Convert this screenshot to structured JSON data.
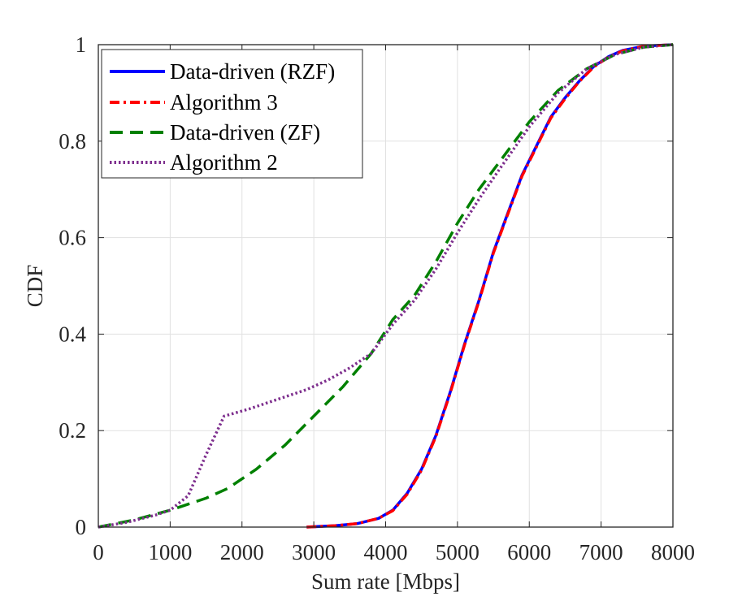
{
  "chart_data": {
    "type": "line",
    "title": "",
    "xlabel": "Sum rate [Mbps]",
    "ylabel": "CDF",
    "xlim": [
      0,
      8000
    ],
    "ylim": [
      0,
      1
    ],
    "grid": true,
    "legend_position": "top-left",
    "x_ticks": [
      "0",
      "1000",
      "2000",
      "3000",
      "4000",
      "5000",
      "6000",
      "7000",
      "8000"
    ],
    "y_ticks": [
      "0",
      "0.2",
      "0.4",
      "0.6",
      "0.8",
      "1"
    ],
    "x_tick_values": [
      0,
      1000,
      2000,
      3000,
      4000,
      5000,
      6000,
      7000,
      8000
    ],
    "y_tick_values": [
      0,
      0.2,
      0.4,
      0.6,
      0.8,
      1
    ],
    "series": [
      {
        "name": "Data-driven (RZF)",
        "color": "#0000ff",
        "dash": "solid",
        "points": [
          [
            2900,
            0.0
          ],
          [
            3300,
            0.003
          ],
          [
            3600,
            0.007
          ],
          [
            3900,
            0.018
          ],
          [
            4100,
            0.035
          ],
          [
            4300,
            0.07
          ],
          [
            4500,
            0.12
          ],
          [
            4700,
            0.19
          ],
          [
            4900,
            0.28
          ],
          [
            5100,
            0.38
          ],
          [
            5300,
            0.47
          ],
          [
            5500,
            0.57
          ],
          [
            5700,
            0.65
          ],
          [
            5900,
            0.73
          ],
          [
            6100,
            0.79
          ],
          [
            6300,
            0.85
          ],
          [
            6500,
            0.89
          ],
          [
            6700,
            0.925
          ],
          [
            6900,
            0.955
          ],
          [
            7100,
            0.975
          ],
          [
            7300,
            0.988
          ],
          [
            7600,
            0.997
          ],
          [
            8000,
            1.0
          ]
        ]
      },
      {
        "name": "Algorithm 3",
        "color": "#ff0000",
        "dash": "dashdot",
        "points": [
          [
            2900,
            0.0
          ],
          [
            3300,
            0.003
          ],
          [
            3600,
            0.007
          ],
          [
            3900,
            0.018
          ],
          [
            4100,
            0.034
          ],
          [
            4300,
            0.068
          ],
          [
            4500,
            0.118
          ],
          [
            4700,
            0.188
          ],
          [
            4900,
            0.278
          ],
          [
            5100,
            0.378
          ],
          [
            5300,
            0.468
          ],
          [
            5500,
            0.568
          ],
          [
            5700,
            0.648
          ],
          [
            5900,
            0.728
          ],
          [
            6100,
            0.788
          ],
          [
            6300,
            0.848
          ],
          [
            6500,
            0.888
          ],
          [
            6700,
            0.924
          ],
          [
            6900,
            0.954
          ],
          [
            7100,
            0.974
          ],
          [
            7300,
            0.987
          ],
          [
            7600,
            0.997
          ],
          [
            8000,
            1.0
          ]
        ]
      },
      {
        "name": "Data-driven (ZF)",
        "color": "#008000",
        "dash": "dashed",
        "points": [
          [
            0,
            0.0
          ],
          [
            500,
            0.015
          ],
          [
            1000,
            0.035
          ],
          [
            1500,
            0.06
          ],
          [
            1800,
            0.08
          ],
          [
            2200,
            0.12
          ],
          [
            2600,
            0.17
          ],
          [
            3000,
            0.23
          ],
          [
            3400,
            0.29
          ],
          [
            3800,
            0.36
          ],
          [
            4100,
            0.43
          ],
          [
            4400,
            0.48
          ],
          [
            4700,
            0.55
          ],
          [
            5000,
            0.63
          ],
          [
            5300,
            0.7
          ],
          [
            5600,
            0.76
          ],
          [
            6000,
            0.84
          ],
          [
            6400,
            0.905
          ],
          [
            6800,
            0.95
          ],
          [
            7200,
            0.98
          ],
          [
            7600,
            0.995
          ],
          [
            8000,
            1.0
          ]
        ]
      },
      {
        "name": "Algorithm 2",
        "color": "#7e2f8e",
        "dash": "dotted",
        "points": [
          [
            0,
            0.0
          ],
          [
            400,
            0.01
          ],
          [
            800,
            0.025
          ],
          [
            1000,
            0.035
          ],
          [
            1250,
            0.065
          ],
          [
            1500,
            0.15
          ],
          [
            1750,
            0.23
          ],
          [
            2100,
            0.245
          ],
          [
            2500,
            0.265
          ],
          [
            2900,
            0.285
          ],
          [
            3200,
            0.305
          ],
          [
            3500,
            0.33
          ],
          [
            3800,
            0.36
          ],
          [
            4100,
            0.42
          ],
          [
            4400,
            0.47
          ],
          [
            4700,
            0.535
          ],
          [
            5000,
            0.61
          ],
          [
            5300,
            0.68
          ],
          [
            5600,
            0.745
          ],
          [
            6000,
            0.83
          ],
          [
            6400,
            0.9
          ],
          [
            6800,
            0.95
          ],
          [
            7200,
            0.98
          ],
          [
            7600,
            0.995
          ],
          [
            8000,
            1.0
          ]
        ]
      }
    ]
  }
}
